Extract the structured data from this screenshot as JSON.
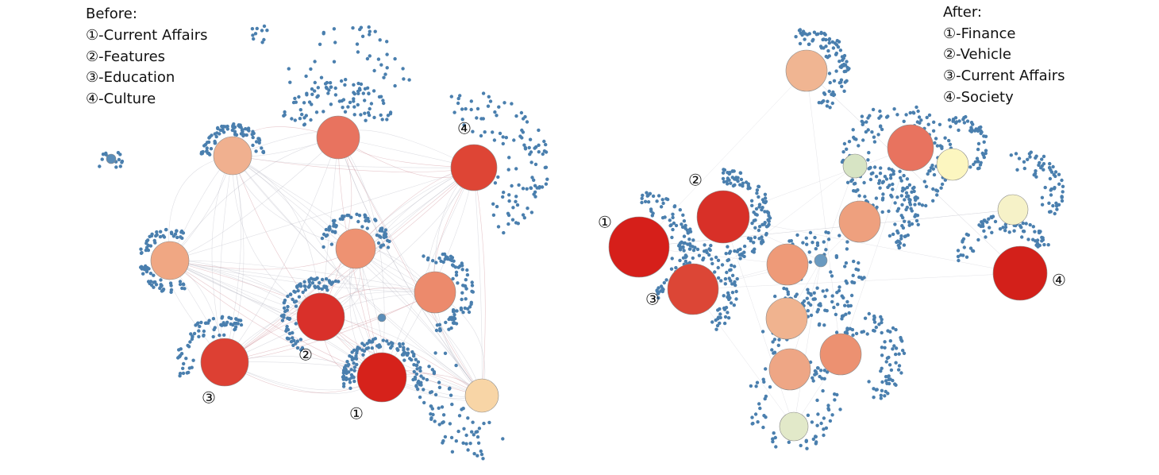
{
  "before": {
    "title": "Before:",
    "items": [
      "①-Current Affairs",
      "②-Features",
      "③-Education",
      "④-Culture"
    ],
    "labels": [
      "①",
      "②",
      "③",
      "④"
    ]
  },
  "after": {
    "title": "After:",
    "items": [
      "①-Finance",
      "②-Vehicle",
      "③-Current Affairs",
      "④-Society"
    ],
    "labels": [
      "①",
      "②",
      "③",
      "④"
    ]
  }
}
